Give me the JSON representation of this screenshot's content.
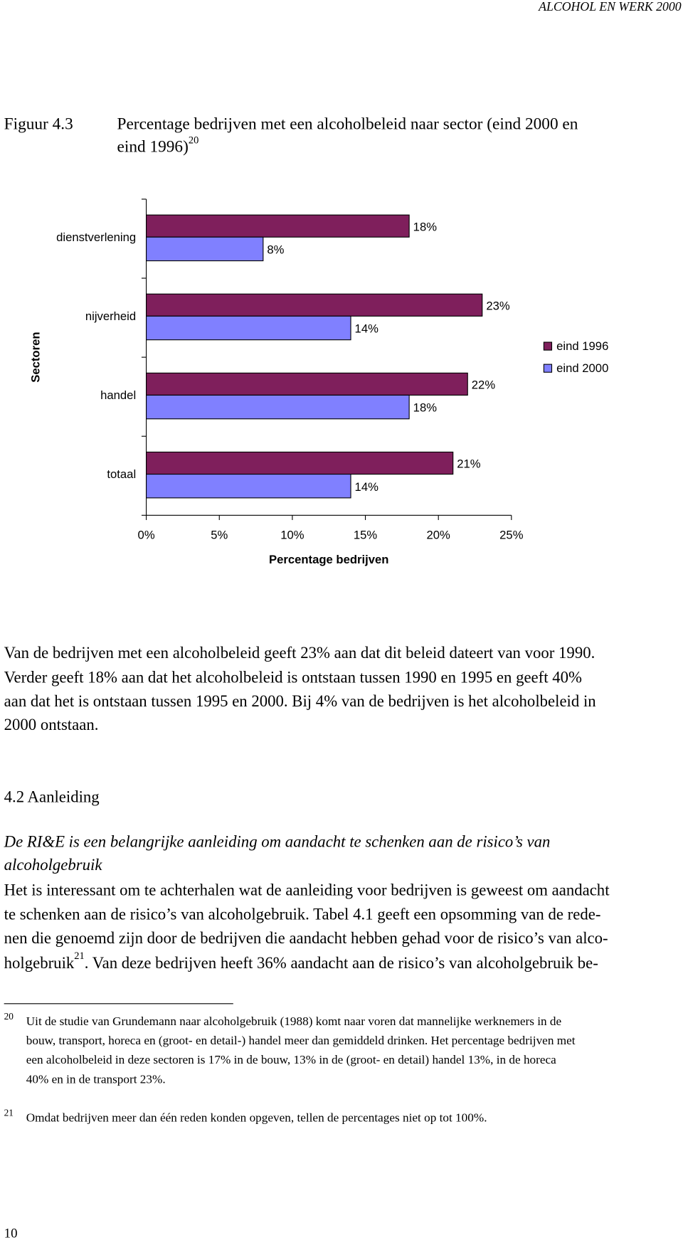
{
  "header": "ALCOHOL EN WERK 2000",
  "figure": {
    "label": "Figuur 4.3",
    "caption": [
      "Percentage bedrijven met een alcoholbeleid naar sector (eind 2000 en",
      "eind 1996)"
    ],
    "footnote_ref": "20"
  },
  "chart_data": {
    "type": "bar",
    "orientation": "horizontal",
    "x_label": "Percentage bedrijven",
    "y_label": "Sectoren",
    "categories": [
      "dienstverlening",
      "nijverheid",
      "handel",
      "totaal"
    ],
    "series": [
      {
        "name": "eind 1996",
        "color": "#7f1f5c",
        "values": [
          18,
          23,
          22,
          21
        ],
        "value_labels": [
          "18%",
          "23%",
          "22%",
          "21%"
        ]
      },
      {
        "name": "eind 2000",
        "color": "#8080ff",
        "values": [
          8,
          14,
          18,
          14
        ],
        "value_labels": [
          "8%",
          "14%",
          "18%",
          "14%"
        ]
      }
    ],
    "xlim": [
      0,
      25
    ],
    "xticks": [
      {
        "value": 0,
        "label": "0%"
      },
      {
        "value": 5,
        "label": "5%"
      },
      {
        "value": 10,
        "label": "10%"
      },
      {
        "value": 15,
        "label": "15%"
      },
      {
        "value": 20,
        "label": "20%"
      },
      {
        "value": 25,
        "label": "25%"
      }
    ],
    "legend": "right"
  },
  "paragraph": [
    "Van de bedrijven met een alcoholbeleid geeft 23% aan dat dit beleid dateert van voor 1990.",
    "Verder geeft 18% aan dat het alcoholbeleid is ontstaan tussen 1990 en 1995 en geeft 40%",
    "aan dat het is ontstaan tussen 1995 en 2000. Bij 4% van de bedrijven is het alcoholbeleid in",
    "2000 ontstaan."
  ],
  "section_heading": "4.2 Aanleiding",
  "italic_heading": [
    "De RI&E is een belangrijke aanleiding om aandacht te schenken aan de risico’s van",
    "alcoholgebruik"
  ],
  "body": {
    "lines": [
      "Het is interessant om te achterhalen wat de aanleiding voor bedrijven is geweest om aandacht",
      "te schenken aan de risico’s van alcoholgebruik. Tabel 4.1 geeft een opsomming van de rede-",
      "nen die genoemd zijn door de bedrijven die aandacht hebben gehad voor de risico’s van alco-"
    ],
    "last_line": [
      "holgebruik",
      "21",
      ". Van deze bedrijven heeft 36% aandacht aan de risico’s van alcoholgebruik be-"
    ]
  },
  "footnotes": [
    {
      "marker": "20",
      "lines": [
        "Uit de studie van Grundemann naar alcoholgebruik (1988) komt naar voren dat mannelijke werknemers in de",
        "bouw, transport, horeca en (groot- en detail-) handel meer dan gemiddeld drinken. Het percentage bedrijven met",
        "een alcoholbeleid in deze sectoren is 17% in de bouw, 13% in de (groot- en detail) handel 13%, in de horeca",
        "40% en in de transport 23%."
      ]
    },
    {
      "marker": "21",
      "lines": [
        "Omdat bedrijven meer dan één reden konden opgeven, tellen de percentages niet op tot 100%."
      ]
    }
  ],
  "page_number": "10"
}
